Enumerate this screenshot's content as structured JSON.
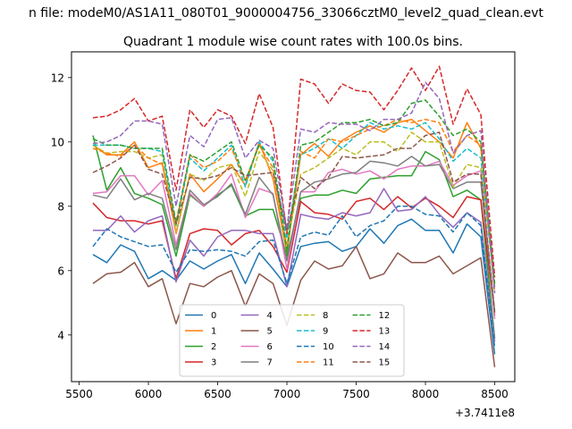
{
  "figure": {
    "suptitle": "n file: modeM0/AS1A11_080T01_9000004756_33066cztM0_level2_quad_clean.evt",
    "title": "Quadrant 1 module wise count rates with 100.0s bins.",
    "offset_label": "+3.7411e8"
  },
  "chart_data": {
    "type": "line",
    "title": "Quadrant 1 module wise count rates with 100.0s bins.",
    "xlabel": "",
    "ylabel": "",
    "x_offset": 374110000,
    "xlim": [
      5445,
      8645
    ],
    "ylim": [
      2.55,
      12.8
    ],
    "xticks": [
      5500,
      6000,
      6500,
      7000,
      7500,
      8000,
      8500
    ],
    "xtick_labels": [
      "5500",
      "6000",
      "6500",
      "7000",
      "7500",
      "8000",
      "8500"
    ],
    "yticks": [
      4,
      6,
      8,
      10,
      12
    ],
    "ytick_labels": [
      "4",
      "6",
      "8",
      "10",
      "12"
    ],
    "grid": false,
    "legend": {
      "location": "lower-center",
      "columns": 4
    },
    "x": [
      5600,
      5700,
      5800,
      5900,
      6000,
      6100,
      6200,
      6300,
      6400,
      6500,
      6600,
      6700,
      6800,
      6900,
      7000,
      7100,
      7200,
      7300,
      7400,
      7500,
      7600,
      7700,
      7800,
      7900,
      8000,
      8100,
      8200,
      8300,
      8400,
      8500
    ],
    "series": [
      {
        "name": "0",
        "color": "#1f77b4",
        "dash": "solid",
        "values": [
          6.5,
          6.25,
          6.8,
          6.6,
          5.75,
          6.0,
          5.7,
          6.3,
          6.05,
          6.3,
          6.5,
          5.6,
          6.55,
          6.05,
          5.5,
          6.75,
          6.85,
          6.9,
          6.6,
          6.75,
          7.3,
          6.85,
          7.4,
          7.6,
          7.25,
          7.25,
          6.55,
          7.45,
          7.05,
          3.4
        ]
      },
      {
        "name": "1",
        "color": "#ff7f0e",
        "dash": "solid",
        "values": [
          9.9,
          9.6,
          9.6,
          10.0,
          9.2,
          9.35,
          7.15,
          9.0,
          8.45,
          8.85,
          9.3,
          8.65,
          10.0,
          8.85,
          6.55,
          9.6,
          9.95,
          9.55,
          10.05,
          10.3,
          10.5,
          10.3,
          10.6,
          10.7,
          10.35,
          10.0,
          9.5,
          10.6,
          9.8,
          5.5
        ]
      },
      {
        "name": "2",
        "color": "#2ca02c",
        "dash": "solid",
        "values": [
          10.2,
          8.5,
          9.2,
          8.4,
          8.25,
          8.05,
          6.45,
          8.35,
          8.0,
          8.35,
          8.65,
          7.7,
          7.9,
          7.9,
          6.45,
          8.25,
          8.35,
          8.35,
          8.5,
          8.4,
          8.85,
          8.9,
          8.95,
          8.95,
          9.7,
          9.45,
          8.3,
          8.5,
          8.2,
          3.9
        ]
      },
      {
        "name": "3",
        "color": "#d62728",
        "dash": "solid",
        "values": [
          8.1,
          7.65,
          7.55,
          7.55,
          7.45,
          7.55,
          5.75,
          7.15,
          7.3,
          7.25,
          6.8,
          7.15,
          7.25,
          6.75,
          5.95,
          8.15,
          7.8,
          7.75,
          7.6,
          8.15,
          8.25,
          7.9,
          8.3,
          7.95,
          8.25,
          8.0,
          7.65,
          8.3,
          8.2,
          4.6
        ]
      },
      {
        "name": "4",
        "color": "#9467bd",
        "dash": "solid",
        "values": [
          7.25,
          7.25,
          7.7,
          7.2,
          7.55,
          7.7,
          5.65,
          6.95,
          6.45,
          7.05,
          7.25,
          7.25,
          7.15,
          7.15,
          5.5,
          7.75,
          7.65,
          7.6,
          7.8,
          7.7,
          7.8,
          8.55,
          7.85,
          7.9,
          8.3,
          7.75,
          7.35,
          7.8,
          7.5,
          3.8
        ]
      },
      {
        "name": "5",
        "color": "#8c564b",
        "dash": "solid",
        "values": [
          5.6,
          5.9,
          5.95,
          6.25,
          5.5,
          5.75,
          4.35,
          5.6,
          5.5,
          5.8,
          6.0,
          4.9,
          5.9,
          5.6,
          4.3,
          5.7,
          6.3,
          6.05,
          6.15,
          6.75,
          5.75,
          5.9,
          6.55,
          6.25,
          6.25,
          6.45,
          5.9,
          6.15,
          6.4,
          3.0
        ]
      },
      {
        "name": "6",
        "color": "#e377c2",
        "dash": "solid",
        "values": [
          8.4,
          8.45,
          8.95,
          8.95,
          8.35,
          8.8,
          6.8,
          8.4,
          8.0,
          8.4,
          9.0,
          7.65,
          8.55,
          8.4,
          6.05,
          8.45,
          8.45,
          9.05,
          9.15,
          9.0,
          9.1,
          8.85,
          9.15,
          9.25,
          9.25,
          9.4,
          8.65,
          8.95,
          9.1,
          4.5
        ]
      },
      {
        "name": "7",
        "color": "#7f7f7f",
        "dash": "solid",
        "values": [
          8.35,
          8.25,
          8.85,
          8.2,
          8.4,
          8.25,
          6.65,
          8.5,
          8.05,
          8.3,
          8.7,
          7.75,
          8.9,
          8.35,
          6.3,
          8.45,
          8.75,
          8.85,
          9.0,
          9.05,
          9.4,
          9.35,
          9.25,
          9.55,
          9.25,
          9.3,
          8.55,
          8.75,
          8.75,
          4.75
        ]
      },
      {
        "name": "8",
        "color": "#bcbd22",
        "dash": "dashed",
        "values": [
          9.9,
          9.65,
          9.7,
          9.7,
          9.5,
          9.6,
          7.2,
          9.0,
          8.8,
          9.2,
          9.3,
          8.3,
          9.7,
          9.1,
          6.8,
          9.0,
          9.2,
          9.5,
          9.8,
          9.6,
          10.0,
          10.0,
          9.7,
          10.3,
          10.0,
          10.0,
          8.6,
          9.3,
          9.2,
          5.6
        ]
      },
      {
        "name": "9",
        "color": "#17becf",
        "dash": "dashed",
        "values": [
          9.9,
          9.9,
          9.9,
          9.8,
          9.8,
          9.7,
          7.4,
          9.5,
          9.1,
          9.5,
          9.9,
          8.6,
          10.0,
          9.4,
          7.0,
          9.6,
          9.8,
          10.1,
          9.8,
          10.2,
          10.6,
          10.4,
          10.5,
          10.4,
          10.6,
          10.1,
          9.4,
          9.8,
          9.5,
          5.4
        ]
      },
      {
        "name": "10",
        "color": "#1f77b4",
        "dash": "dashed",
        "values": [
          6.75,
          7.3,
          7.05,
          6.9,
          6.75,
          6.8,
          5.95,
          6.65,
          6.6,
          6.65,
          6.6,
          6.45,
          6.9,
          6.95,
          5.6,
          7.05,
          7.2,
          7.1,
          7.7,
          7.05,
          7.4,
          7.55,
          8.0,
          8.0,
          7.75,
          7.7,
          7.2,
          7.8,
          7.4,
          3.6
        ]
      },
      {
        "name": "11",
        "color": "#ff7f0e",
        "dash": "dashed",
        "values": [
          9.8,
          9.65,
          9.55,
          9.9,
          9.5,
          9.3,
          7.45,
          9.6,
          9.2,
          9.4,
          9.8,
          8.8,
          9.9,
          9.2,
          6.7,
          9.7,
          9.5,
          10.1,
          10.0,
          10.2,
          10.4,
          10.5,
          10.7,
          10.6,
          10.7,
          10.6,
          9.7,
          10.2,
          9.9,
          5.3
        ]
      },
      {
        "name": "12",
        "color": "#2ca02c",
        "dash": "dashed",
        "values": [
          10.1,
          9.9,
          9.9,
          9.8,
          9.8,
          9.8,
          7.5,
          9.6,
          9.4,
          9.7,
          10.0,
          8.8,
          9.9,
          9.5,
          6.6,
          9.9,
          10.0,
          10.3,
          10.6,
          10.6,
          10.7,
          10.5,
          10.6,
          11.2,
          11.3,
          10.8,
          10.2,
          10.4,
          10.0,
          5.6
        ]
      },
      {
        "name": "13",
        "color": "#d62728",
        "dash": "dashed",
        "values": [
          10.75,
          10.8,
          11.0,
          11.35,
          10.65,
          10.8,
          8.5,
          11.0,
          10.45,
          11.0,
          10.8,
          9.95,
          11.5,
          10.45,
          7.15,
          11.95,
          11.8,
          11.2,
          11.8,
          11.6,
          11.55,
          11.0,
          11.6,
          12.3,
          11.6,
          12.35,
          10.55,
          11.65,
          10.85,
          5.8
        ]
      },
      {
        "name": "14",
        "color": "#9467bd",
        "dash": "dashed",
        "values": [
          9.95,
          10.0,
          10.2,
          10.65,
          10.65,
          10.55,
          8.0,
          10.2,
          9.85,
          10.7,
          10.75,
          9.5,
          10.05,
          9.8,
          7.3,
          10.4,
          10.3,
          10.6,
          10.55,
          10.55,
          10.35,
          10.7,
          10.7,
          10.9,
          11.85,
          11.35,
          9.65,
          10.2,
          10.35,
          5.3
        ]
      },
      {
        "name": "15",
        "color": "#8c564b",
        "dash": "dashed",
        "values": [
          9.05,
          9.25,
          9.5,
          9.9,
          9.15,
          9.0,
          7.45,
          8.9,
          8.85,
          8.95,
          9.2,
          8.95,
          9.0,
          9.05,
          7.25,
          8.9,
          8.55,
          8.9,
          9.55,
          9.5,
          9.55,
          9.6,
          9.8,
          9.8,
          10.2,
          10.3,
          8.75,
          9.0,
          9.0,
          4.7
        ]
      }
    ]
  }
}
